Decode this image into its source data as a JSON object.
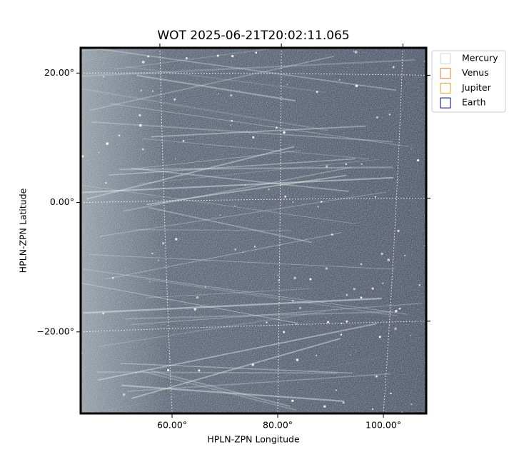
{
  "chart_data": {
    "type": "image",
    "title": "WOT 2025-06-21T20:02:11.065",
    "x_label": "HPLN-ZPN Longitude",
    "y_label": "HPLN-ZPN Latitude",
    "xlim": [
      42.7,
      108.1
    ],
    "ylim": [
      -32.6,
      23.9
    ],
    "xticks": [
      {
        "value": 60,
        "label": "60.00°"
      },
      {
        "value": 80,
        "label": "80.00°"
      },
      {
        "value": 100,
        "label": "100.00°"
      }
    ],
    "yticks": [
      {
        "value": 20,
        "label": "20.00°"
      },
      {
        "value": 0,
        "label": "0.00°"
      },
      {
        "value": -20,
        "label": "−20.00°"
      }
    ],
    "grid": true,
    "legend_position": "upper right outside",
    "series": [
      {
        "name": "Mercury",
        "color": "#d3d3d3"
      },
      {
        "name": "Venus",
        "color": "#e07b39"
      },
      {
        "name": "Jupiter",
        "color": "#daa520"
      },
      {
        "name": "Earth",
        "color": "#000080"
      }
    ]
  }
}
